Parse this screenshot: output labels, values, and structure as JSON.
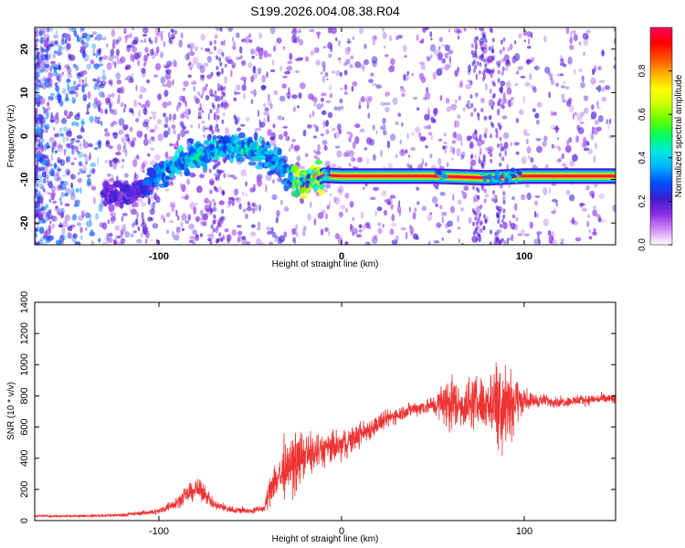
{
  "title": "S199.2026.004.08.38.R04",
  "chart_data": [
    {
      "type": "heatmap",
      "xlabel": "Height of straight line (km)",
      "ylabel": "Frequency (Hz)",
      "xlim": [
        -168,
        150
      ],
      "ylim": [
        -25,
        25
      ],
      "x_ticks": [
        -100,
        0,
        100
      ],
      "y_ticks": [
        -20,
        -10,
        0,
        10,
        20
      ],
      "grid": false,
      "colorbar": {
        "label": "Normalized spectral amplitude",
        "range": [
          0,
          1
        ],
        "ticks": [
          0.0,
          0.2,
          0.4,
          0.6,
          0.8
        ],
        "tick_labels": [
          "0.0",
          "0.2",
          "0.4",
          "0.6",
          "0.8"
        ],
        "palette": [
          "#ffffff",
          "#d08cf8",
          "#8a2be2",
          "#3a1fd0",
          "#0050ff",
          "#00b0ff",
          "#00e8e0",
          "#00ff60",
          "#60ff00",
          "#c8ff00",
          "#ffff00",
          "#ffb000",
          "#ff5000",
          "#ff0000",
          "#ff0060"
        ]
      },
      "signal_track": {
        "x": [
          -120,
          -110,
          -100,
          -90,
          -80,
          -70,
          -60,
          -50,
          -40,
          -30,
          -25,
          -20,
          -15,
          -10,
          0,
          20,
          50,
          80,
          100,
          150
        ],
        "freq_hz": [
          -13,
          -12,
          -9,
          -6,
          -5,
          -3,
          -2,
          -3,
          -5,
          -8,
          -10,
          -10.5,
          -10,
          -9,
          -9.2,
          -9.2,
          -9.2,
          -9.6,
          -9.2,
          -9.2
        ],
        "peak_amplitude": [
          0.2,
          0.25,
          0.35,
          0.4,
          0.45,
          0.4,
          0.4,
          0.45,
          0.4,
          0.35,
          0.55,
          0.85,
          0.7,
          0.8,
          1.0,
          1.0,
          0.95,
          0.9,
          0.9,
          0.95
        ]
      }
    },
    {
      "type": "line",
      "xlabel": "Height of straight line (km)",
      "ylabel": "SNR (10 * v/v)",
      "xlim": [
        -168,
        150
      ],
      "ylim": [
        0,
        1400
      ],
      "x_ticks": [
        -100,
        0,
        100
      ],
      "y_ticks": [
        0,
        200,
        400,
        600,
        800,
        1000,
        1200,
        1400
      ],
      "grid": false,
      "series": [
        {
          "color": "#ee3333",
          "x": [
            -168,
            -150,
            -120,
            -100,
            -90,
            -80,
            -75,
            -70,
            -60,
            -50,
            -42,
            -38,
            -30,
            -25,
            -20,
            -10,
            0,
            10,
            20,
            30,
            40,
            50,
            60,
            65,
            70,
            80,
            85,
            90,
            92,
            95,
            100,
            110,
            120,
            130,
            140,
            150
          ],
          "y": [
            30,
            28,
            35,
            60,
            120,
            200,
            180,
            100,
            70,
            60,
            80,
            250,
            320,
            380,
            420,
            450,
            480,
            550,
            620,
            680,
            720,
            740,
            760,
            740,
            750,
            760,
            780,
            780,
            760,
            770,
            770,
            770,
            760,
            770,
            780,
            780
          ],
          "spread": [
            10,
            10,
            15,
            30,
            60,
            100,
            90,
            50,
            35,
            30,
            40,
            200,
            260,
            280,
            220,
            170,
            150,
            120,
            100,
            80,
            70,
            90,
            300,
            200,
            250,
            260,
            450,
            520,
            420,
            260,
            90,
            60,
            50,
            50,
            50,
            60
          ]
        }
      ]
    }
  ]
}
